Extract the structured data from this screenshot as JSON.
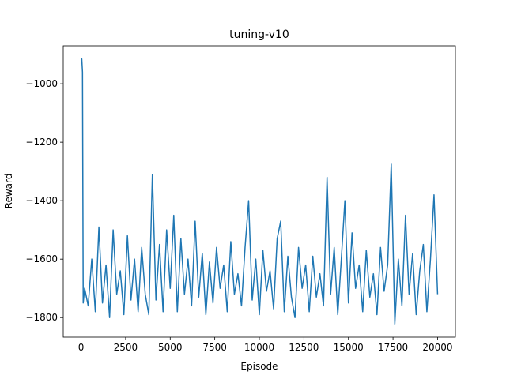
{
  "chart_data": {
    "type": "line",
    "title": "tuning-v10",
    "x_label": "Episode",
    "y_label": "Reward",
    "x": [
      0,
      40,
      80,
      120,
      200,
      400,
      600,
      800,
      1000,
      1200,
      1400,
      1600,
      1800,
      2000,
      2200,
      2400,
      2600,
      2800,
      3000,
      3200,
      3400,
      3600,
      3800,
      4000,
      4200,
      4400,
      4600,
      4800,
      5000,
      5200,
      5400,
      5600,
      5800,
      6000,
      6200,
      6400,
      6600,
      6800,
      7000,
      7200,
      7400,
      7600,
      7800,
      8000,
      8200,
      8400,
      8600,
      8800,
      9000,
      9200,
      9400,
      9600,
      9800,
      10000,
      10200,
      10400,
      10600,
      10800,
      11000,
      11200,
      11400,
      11600,
      11800,
      12000,
      12200,
      12400,
      12600,
      12800,
      13000,
      13200,
      13400,
      13600,
      13800,
      14000,
      14200,
      14400,
      14600,
      14800,
      15000,
      15200,
      15400,
      15600,
      15800,
      16000,
      16200,
      16400,
      16600,
      16800,
      17000,
      17200,
      17400,
      17600,
      17800,
      18000,
      18200,
      18400,
      18600,
      18800,
      19000,
      19200,
      19400,
      19600,
      19800,
      20000
    ],
    "series": [
      {
        "color": "#1f77b4",
        "values": [
          -920,
          -915,
          -960,
          -1750,
          -1700,
          -1760,
          -1600,
          -1780,
          -1490,
          -1750,
          -1620,
          -1800,
          -1500,
          -1720,
          -1640,
          -1790,
          -1520,
          -1740,
          -1600,
          -1780,
          -1560,
          -1720,
          -1790,
          -1310,
          -1740,
          -1550,
          -1780,
          -1500,
          -1700,
          -1450,
          -1780,
          -1530,
          -1720,
          -1600,
          -1760,
          -1470,
          -1730,
          -1580,
          -1790,
          -1610,
          -1750,
          -1560,
          -1700,
          -1620,
          -1780,
          -1540,
          -1720,
          -1650,
          -1760,
          -1560,
          -1400,
          -1740,
          -1600,
          -1790,
          -1570,
          -1710,
          -1640,
          -1770,
          -1530,
          -1470,
          -1780,
          -1590,
          -1730,
          -1800,
          -1560,
          -1700,
          -1620,
          -1780,
          -1590,
          -1730,
          -1650,
          -1760,
          -1320,
          -1720,
          -1560,
          -1790,
          -1600,
          -1400,
          -1750,
          -1510,
          -1700,
          -1620,
          -1780,
          -1570,
          -1730,
          -1650,
          -1790,
          -1560,
          -1710,
          -1620,
          -1275,
          -1822,
          -1600,
          -1760,
          -1450,
          -1720,
          -1580,
          -1790,
          -1640,
          -1550,
          -1780,
          -1600,
          -1380,
          -1720
        ]
      }
    ],
    "xlim": [
      -1000,
      21000
    ],
    "ylim": [
      -1867,
      -870
    ],
    "xticks": [
      0,
      2500,
      5000,
      7500,
      10000,
      12500,
      15000,
      17500,
      20000
    ],
    "yticks": [
      {
        "value": -1800,
        "label": "−1800"
      },
      {
        "value": -1600,
        "label": "−1600"
      },
      {
        "value": -1400,
        "label": "−1400"
      },
      {
        "value": -1200,
        "label": "−1200"
      },
      {
        "value": -1000,
        "label": "−1000"
      }
    ]
  }
}
